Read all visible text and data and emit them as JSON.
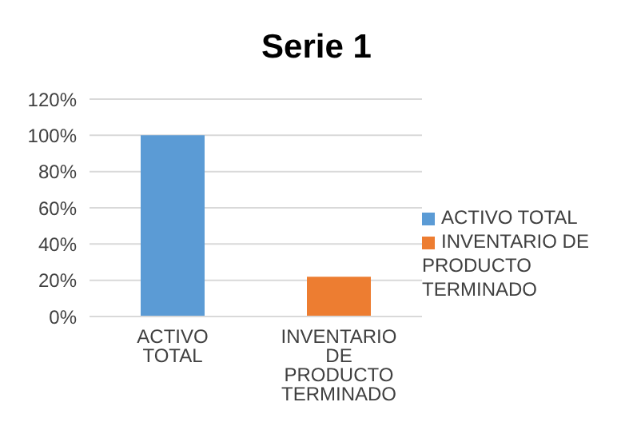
{
  "chart_data": {
    "type": "bar",
    "title": "Serie 1",
    "categories": [
      "ACTIVO TOTAL",
      "INVENTARIO DE PRODUCTO TERMINADO"
    ],
    "series": [
      {
        "name": "ACTIVO TOTAL",
        "color": "#5b9bd5",
        "values": [
          100,
          null
        ]
      },
      {
        "name": "INVENTARIO DE PRODUCTO TERMINADO",
        "color": "#ed7d31",
        "values": [
          null,
          22
        ]
      }
    ],
    "ylim": [
      0,
      120
    ],
    "yticks": [
      {
        "value": 0,
        "label": "0%"
      },
      {
        "value": 20,
        "label": "20%"
      },
      {
        "value": 40,
        "label": "40%"
      },
      {
        "value": 60,
        "label": "60%"
      },
      {
        "value": 80,
        "label": "80%"
      },
      {
        "value": 100,
        "label": "100%"
      },
      {
        "value": 120,
        "label": "120%"
      }
    ],
    "grid": "y",
    "legend": "right"
  }
}
